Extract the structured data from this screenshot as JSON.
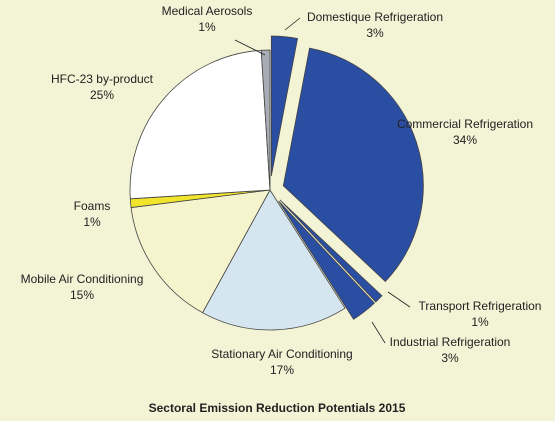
{
  "chart_data": {
    "type": "pie",
    "title": "Sectoral Emission Reduction Potentials 2015",
    "categories": [
      "Domestique Refrigeration",
      "Commercial Refrigeration",
      "Transport Refrigeration",
      "Industrial Refrigeration",
      "Stationary Air Conditioning",
      "Mobile Air Conditioning",
      "Foams",
      "HFC-23 by-product",
      "Medical Aerosols"
    ],
    "values": [
      3,
      34,
      1,
      3,
      17,
      15,
      1,
      25,
      1
    ],
    "value_labels": [
      "3%",
      "34%",
      "1%",
      "3%",
      "17%",
      "15%",
      "1%",
      "25%",
      "1%"
    ],
    "colors": [
      "#2a4ea2",
      "#2a4ea2",
      "#2a4ea2",
      "#2a4ea2",
      "#d5e6f0",
      "#f6f4cd",
      "#f1e52c",
      "#ffffff",
      "#a9aeb6"
    ],
    "exploded": [
      true,
      true,
      true,
      true,
      false,
      false,
      false,
      false,
      false
    ]
  }
}
